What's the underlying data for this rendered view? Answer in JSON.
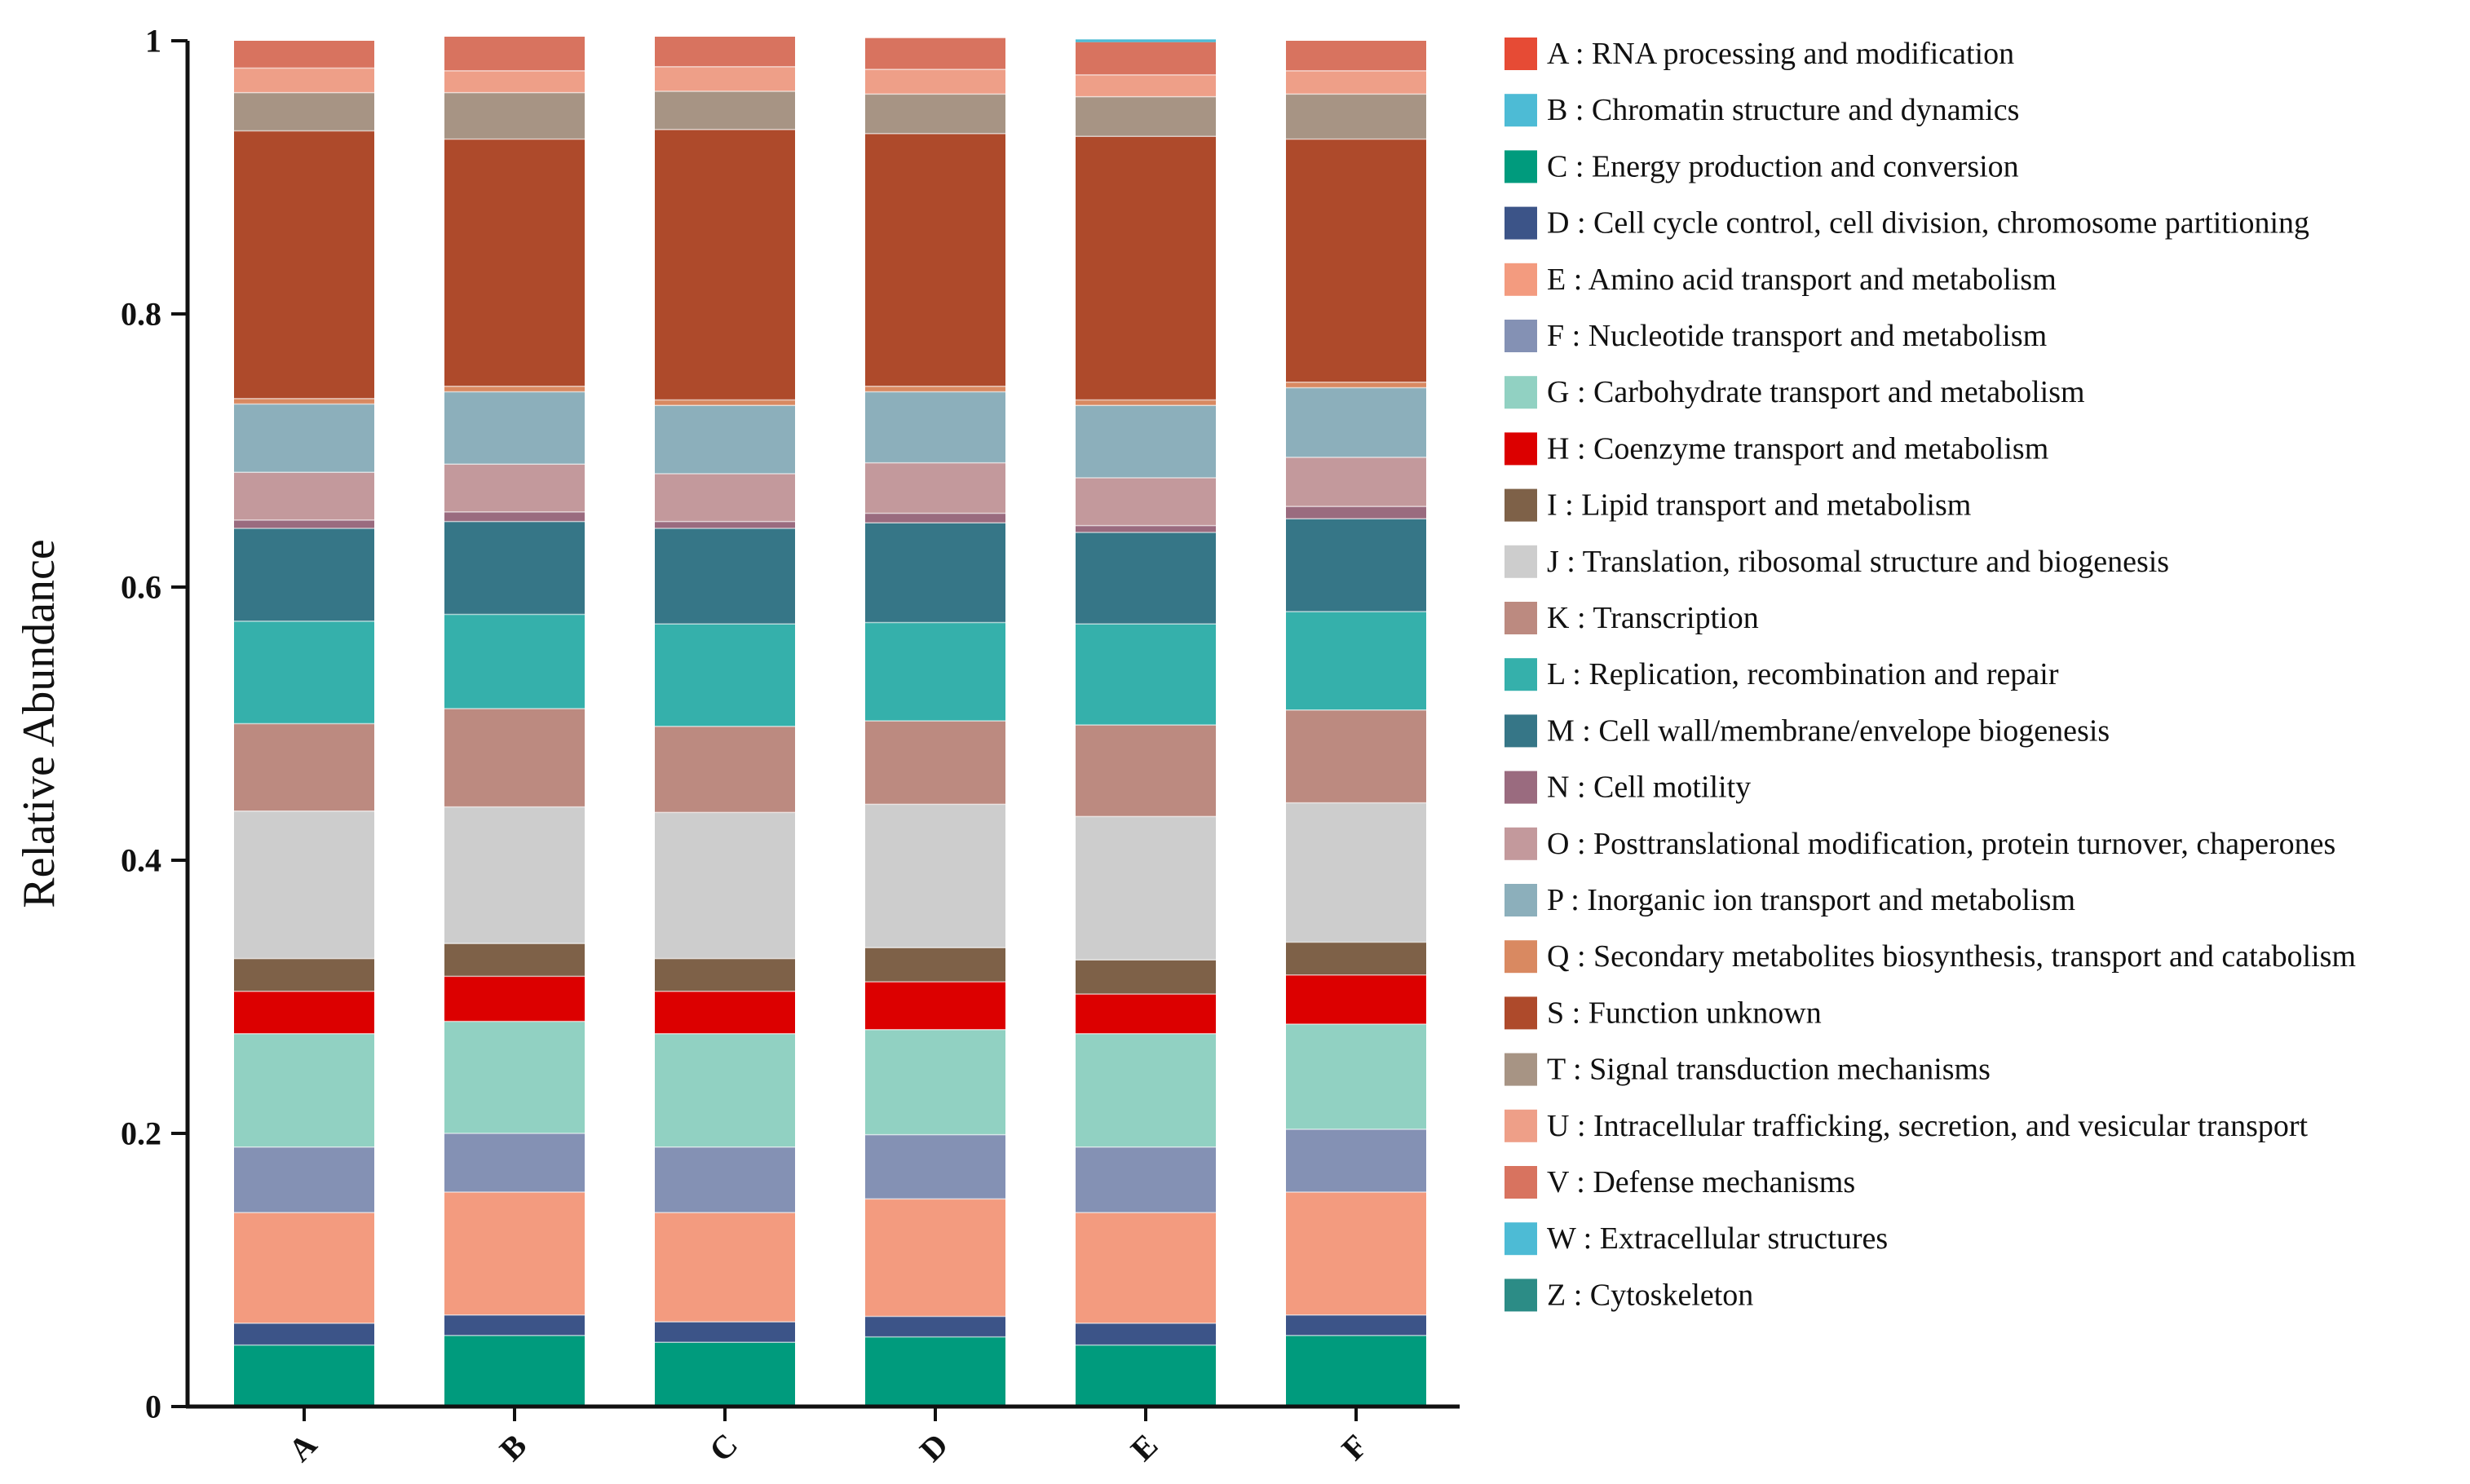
{
  "chart_data": {
    "type": "stacked-bar",
    "title": "",
    "xlabel": "",
    "ylabel": "Relative Abundance",
    "ylim": [
      0,
      1
    ],
    "yticks": [
      0,
      0.2,
      0.4,
      0.6,
      0.8,
      1
    ],
    "ytick_labels": [
      "0",
      "0.2",
      "0.4",
      "0.6",
      "0.8",
      "1"
    ],
    "grid": false,
    "legend_position": "right",
    "categories": [
      "A",
      "B",
      "C",
      "D",
      "E",
      "F"
    ],
    "series": [
      {
        "key": "C",
        "name": "C : Energy production and conversion",
        "color": "#009B7D",
        "values": [
          0.045,
          0.052,
          0.047,
          0.051,
          0.045,
          0.052
        ]
      },
      {
        "key": "D",
        "name": "D : Cell cycle control, cell division, chromosome partitioning",
        "color": "#3C5488",
        "values": [
          0.016,
          0.015,
          0.015,
          0.015,
          0.016,
          0.015
        ]
      },
      {
        "key": "E",
        "name": "E : Amino acid transport and metabolism",
        "color": "#F39B7F",
        "values": [
          0.081,
          0.09,
          0.08,
          0.086,
          0.081,
          0.09
        ]
      },
      {
        "key": "F",
        "name": "F : Nucleotide transport and metabolism",
        "color": "#8491B4",
        "values": [
          0.048,
          0.043,
          0.048,
          0.047,
          0.048,
          0.046
        ]
      },
      {
        "key": "G",
        "name": "G : Carbohydrate transport and metabolism",
        "color": "#91D1C2",
        "values": [
          0.083,
          0.082,
          0.083,
          0.077,
          0.083,
          0.077
        ]
      },
      {
        "key": "H",
        "name": "H : Coenzyme transport and metabolism",
        "color": "#DC0000",
        "values": [
          0.031,
          0.033,
          0.031,
          0.035,
          0.029,
          0.036
        ]
      },
      {
        "key": "I",
        "name": "I : Lipid transport and metabolism",
        "color": "#7E6148",
        "values": [
          0.024,
          0.024,
          0.024,
          0.025,
          0.025,
          0.024
        ]
      },
      {
        "key": "J",
        "name": "J : Translation, ribosomal structure and biogenesis",
        "color": "#CDCDCD",
        "values": [
          0.108,
          0.1,
          0.107,
          0.105,
          0.105,
          0.102
        ]
      },
      {
        "key": "K",
        "name": "K : Transcription",
        "color": "#BC8A80",
        "values": [
          0.064,
          0.072,
          0.063,
          0.061,
          0.067,
          0.068
        ]
      },
      {
        "key": "L",
        "name": "L : Replication, recombination and repair",
        "color": "#35B0AB",
        "values": [
          0.075,
          0.069,
          0.075,
          0.072,
          0.074,
          0.072
        ]
      },
      {
        "key": "M",
        "name": "M : Cell wall/membrane/envelope biogenesis",
        "color": "#367687",
        "values": [
          0.068,
          0.068,
          0.07,
          0.073,
          0.067,
          0.068
        ]
      },
      {
        "key": "N",
        "name": "N : Cell motility",
        "color": "#9A6B7F",
        "values": [
          0.006,
          0.007,
          0.005,
          0.007,
          0.005,
          0.009
        ]
      },
      {
        "key": "O",
        "name": "O : Posttranslational modification, protein turnover, chaperones",
        "color": "#C3999C",
        "values": [
          0.035,
          0.035,
          0.035,
          0.037,
          0.035,
          0.036
        ]
      },
      {
        "key": "P",
        "name": "P : Inorganic ion transport and metabolism",
        "color": "#8CAFBB",
        "values": [
          0.05,
          0.053,
          0.05,
          0.052,
          0.053,
          0.051
        ]
      },
      {
        "key": "Q",
        "name": "Q : Secondary metabolites biosynthesis, transport and catabolism",
        "color": "#D98961",
        "values": [
          0.004,
          0.004,
          0.004,
          0.004,
          0.004,
          0.004
        ]
      },
      {
        "key": "S",
        "name": "S : Function unknown",
        "color": "#AE4A2B",
        "values": [
          0.196,
          0.181,
          0.198,
          0.185,
          0.193,
          0.178
        ]
      },
      {
        "key": "T",
        "name": "T : Signal transduction mechanisms",
        "color": "#A79484",
        "values": [
          0.028,
          0.034,
          0.028,
          0.029,
          0.029,
          0.033
        ]
      },
      {
        "key": "U",
        "name": "U : Intracellular trafficking, secretion, and vesicular transport",
        "color": "#EE9F88",
        "values": [
          0.018,
          0.016,
          0.018,
          0.018,
          0.016,
          0.017
        ]
      },
      {
        "key": "V",
        "name": "V : Defense mechanisms",
        "color": "#D8735F",
        "values": [
          0.02,
          0.025,
          0.022,
          0.023,
          0.024,
          0.022
        ]
      },
      {
        "key": "W",
        "name": "W : Extracellular structures",
        "color": "#4DBBD5",
        "values": [
          0.0,
          0.0,
          0.0,
          0.0,
          0.002,
          0.0
        ]
      },
      {
        "key": "A",
        "name": "A : RNA processing and modification",
        "color": "#E64B35",
        "values": [
          0.0,
          0.0,
          0.0,
          0.0,
          0.0,
          0.0
        ]
      },
      {
        "key": "B",
        "name": "B : Chromatin structure and dynamics",
        "color": "#4DBBD5",
        "values": [
          0.0,
          0.0,
          0.0,
          0.0,
          0.0,
          0.0
        ]
      },
      {
        "key": "Z",
        "name": "Z : Cytoskeleton",
        "color": "#2C8C86",
        "values": [
          0.0,
          0.0,
          0.0,
          0.0,
          0.0,
          0.0
        ]
      }
    ],
    "legend_order": [
      "A",
      "B",
      "C",
      "D",
      "E",
      "F",
      "G",
      "H",
      "I",
      "J",
      "K",
      "L",
      "M",
      "N",
      "O",
      "P",
      "Q",
      "S",
      "T",
      "U",
      "V",
      "W",
      "Z"
    ]
  }
}
